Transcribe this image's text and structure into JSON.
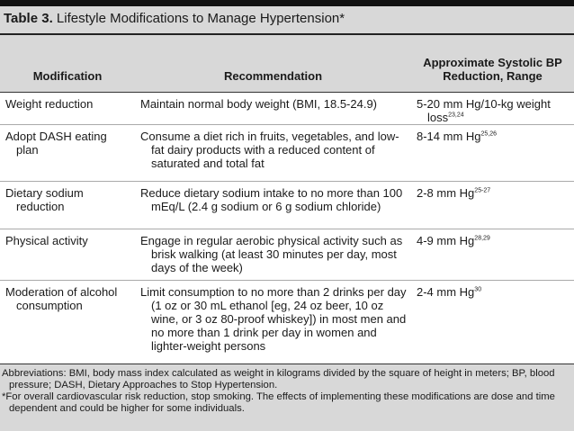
{
  "title": {
    "label": "Table 3.",
    "text": "Lifestyle Modifications to Manage Hypertension*"
  },
  "table": {
    "headers": [
      "Modification",
      "Recommendation",
      "Approximate Systolic BP Reduction, Range"
    ],
    "rows": [
      {
        "modification": "Weight reduction",
        "recommendation": "Maintain normal body weight (BMI, 18.5-24.9)",
        "reduction": "5-20 mm Hg/10-kg weight loss",
        "ref": "23,24"
      },
      {
        "modification": "Adopt DASH eating plan",
        "recommendation": "Consume a diet rich in fruits, vegetables, and low-fat dairy products with a reduced content of saturated and total fat",
        "reduction": "8-14 mm Hg",
        "ref": "25,26"
      },
      {
        "modification": "Dietary sodium reduction",
        "recommendation": "Reduce dietary sodium intake to no more than 100 mEq/L (2.4 g sodium or 6 g sodium chloride)",
        "reduction": "2-8 mm Hg",
        "ref": "25-27"
      },
      {
        "modification": "Physical activity",
        "recommendation": "Engage in regular aerobic physical activity such as brisk walking (at least 30 minutes per day, most days of the week)",
        "reduction": "4-9 mm Hg",
        "ref": "28,29"
      },
      {
        "modification": "Moderation of alcohol consumption",
        "recommendation": "Limit consumption to no more than 2 drinks per day (1 oz or 30 mL ethanol [eg, 24 oz beer, 10 oz wine, or 3 oz 80-proof whiskey]) in most men and no more than 1 drink per day in women and lighter-weight persons",
        "reduction": "2-4 mm Hg",
        "ref": "30"
      }
    ]
  },
  "footnotes": [
    "Abbreviations: BMI, body mass index calculated as weight in kilograms divided by the square of height in meters; BP, blood pressure; DASH, Dietary Approaches to Stop Hypertension.",
    "*For overall cardiovascular risk reduction, stop smoking. The effects of implementing these modifications are dose and time dependent and could be higher for some individuals."
  ]
}
